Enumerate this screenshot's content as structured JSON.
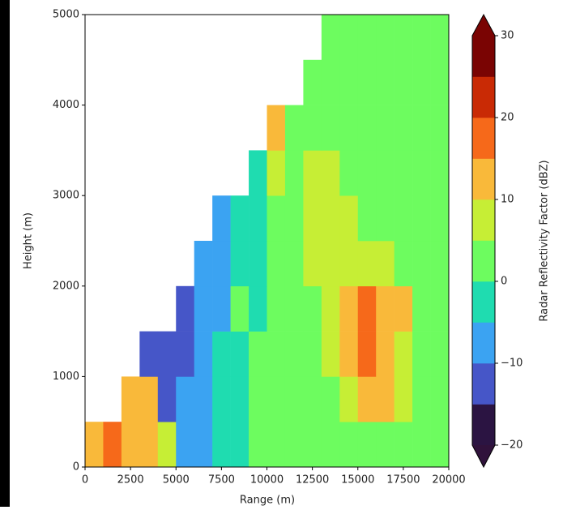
{
  "chart_data": {
    "type": "heatmap",
    "xlabel": "Range (m)",
    "ylabel": "Height (m)",
    "xlim": [
      0,
      20000
    ],
    "ylim": [
      0,
      5000
    ],
    "xticks": [
      0,
      2500,
      5000,
      7500,
      10000,
      12500,
      15000,
      17500,
      20000
    ],
    "yticks": [
      0,
      1000,
      2000,
      3000,
      4000,
      5000
    ],
    "x_bins": [
      0,
      1000,
      2000,
      3000,
      4000,
      5000,
      6000,
      7000,
      8000,
      9000,
      10000,
      11000,
      12000,
      13000,
      14000,
      15000,
      16000,
      17000,
      18000,
      19000,
      20000
    ],
    "y_bins": [
      0,
      500,
      1000,
      1500,
      2000,
      2500,
      3000,
      3500,
      4000,
      4500,
      5000
    ],
    "z": [
      [
        12,
        17,
        12,
        12,
        7,
        -7,
        -7,
        -2,
        -2,
        2,
        2,
        2,
        2,
        2,
        2,
        2,
        2,
        2,
        2,
        2
      ],
      [
        null,
        null,
        12,
        12,
        -12,
        -7,
        -7,
        -2,
        -2,
        2,
        2,
        2,
        2,
        2,
        7,
        12,
        12,
        7,
        2,
        2
      ],
      [
        null,
        null,
        null,
        -12,
        -12,
        -12,
        -7,
        -2,
        -2,
        2,
        2,
        2,
        2,
        7,
        12,
        17,
        12,
        7,
        2,
        2
      ],
      [
        null,
        null,
        null,
        null,
        null,
        -12,
        -7,
        -7,
        2,
        -2,
        2,
        2,
        2,
        7,
        12,
        17,
        12,
        12,
        2,
        2
      ],
      [
        null,
        null,
        null,
        null,
        null,
        null,
        -7,
        -7,
        -2,
        -2,
        2,
        2,
        7,
        7,
        7,
        7,
        7,
        2,
        2,
        2
      ],
      [
        null,
        null,
        null,
        null,
        null,
        null,
        null,
        -7,
        -2,
        -2,
        2,
        2,
        7,
        7,
        7,
        2,
        2,
        2,
        2,
        2
      ],
      [
        null,
        null,
        null,
        null,
        null,
        null,
        null,
        null,
        null,
        -2,
        7,
        2,
        7,
        7,
        2,
        2,
        2,
        2,
        2,
        2
      ],
      [
        null,
        null,
        null,
        null,
        null,
        null,
        null,
        null,
        null,
        null,
        12,
        2,
        2,
        2,
        2,
        2,
        2,
        2,
        2,
        2
      ],
      [
        null,
        null,
        null,
        null,
        null,
        null,
        null,
        null,
        null,
        null,
        null,
        null,
        2,
        2,
        2,
        2,
        2,
        2,
        2,
        2
      ],
      [
        null,
        null,
        null,
        null,
        null,
        null,
        null,
        null,
        null,
        null,
        null,
        null,
        null,
        2,
        2,
        2,
        2,
        2,
        2,
        2
      ]
    ],
    "colorbar": {
      "label": "Radar Reflectivity Factor (dBZ)",
      "levels": [
        -20,
        -15,
        -10,
        -5,
        0,
        5,
        10,
        15,
        20,
        25,
        30
      ],
      "colors": [
        "#2b1442",
        "#4656c8",
        "#3ba3f2",
        "#1fdcb0",
        "#6dfc5f",
        "#c6ee35",
        "#f9b93a",
        "#f6691a",
        "#c92a05",
        "#7a0403"
      ],
      "under": "#30123b",
      "over": "#7a0403",
      "ticks": [
        {
          "value": -20,
          "label": "−20"
        },
        {
          "value": -10,
          "label": "−10"
        },
        0,
        10,
        20,
        30
      ]
    }
  }
}
